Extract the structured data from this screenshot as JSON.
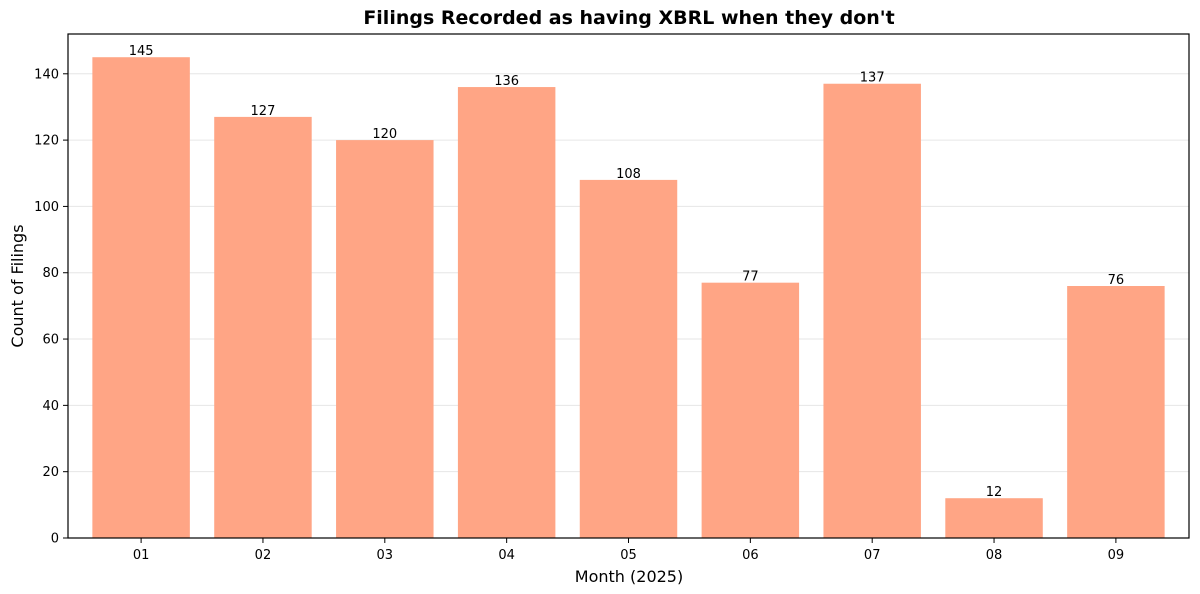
{
  "chart_data": {
    "type": "bar",
    "title": "Filings Recorded as having XBRL when they don't",
    "xlabel": "Month (2025)",
    "ylabel": "Count of Filings",
    "categories": [
      "01",
      "02",
      "03",
      "04",
      "05",
      "06",
      "07",
      "08",
      "09"
    ],
    "values": [
      145,
      127,
      120,
      136,
      108,
      77,
      137,
      12,
      76
    ],
    "ylim": [
      0,
      152
    ],
    "yticks": [
      0,
      20,
      40,
      60,
      80,
      100,
      120,
      140
    ],
    "grid": "y",
    "bar_color": "#FFA585",
    "data_labels": true,
    "legend": "none"
  }
}
